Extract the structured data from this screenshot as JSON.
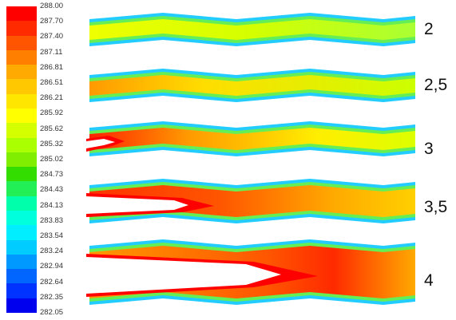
{
  "colorbar": {
    "ticks": [
      "288.00",
      "287.70",
      "287.40",
      "287.11",
      "286.81",
      "286.51",
      "286.21",
      "285.92",
      "285.62",
      "285.32",
      "285.02",
      "284.73",
      "284.43",
      "284.13",
      "283.83",
      "283.54",
      "283.24",
      "282.94",
      "282.64",
      "282.35",
      "282.05"
    ],
    "colors": [
      "#ff0000",
      "#ff2a00",
      "#ff5500",
      "#ff7f00",
      "#ffaa00",
      "#ffc800",
      "#ffe600",
      "#ffff00",
      "#d4ff00",
      "#aaff00",
      "#7fee00",
      "#33dd00",
      "#22ee55",
      "#00ffaa",
      "#00ffdd",
      "#00eeff",
      "#00ccff",
      "#0099ff",
      "#0066ff",
      "#0033ff",
      "#0000ee"
    ]
  },
  "cases": [
    {
      "label": "2"
    },
    {
      "label": "2,5"
    },
    {
      "label": "3"
    },
    {
      "label": "3,5"
    },
    {
      "label": "4"
    }
  ]
}
